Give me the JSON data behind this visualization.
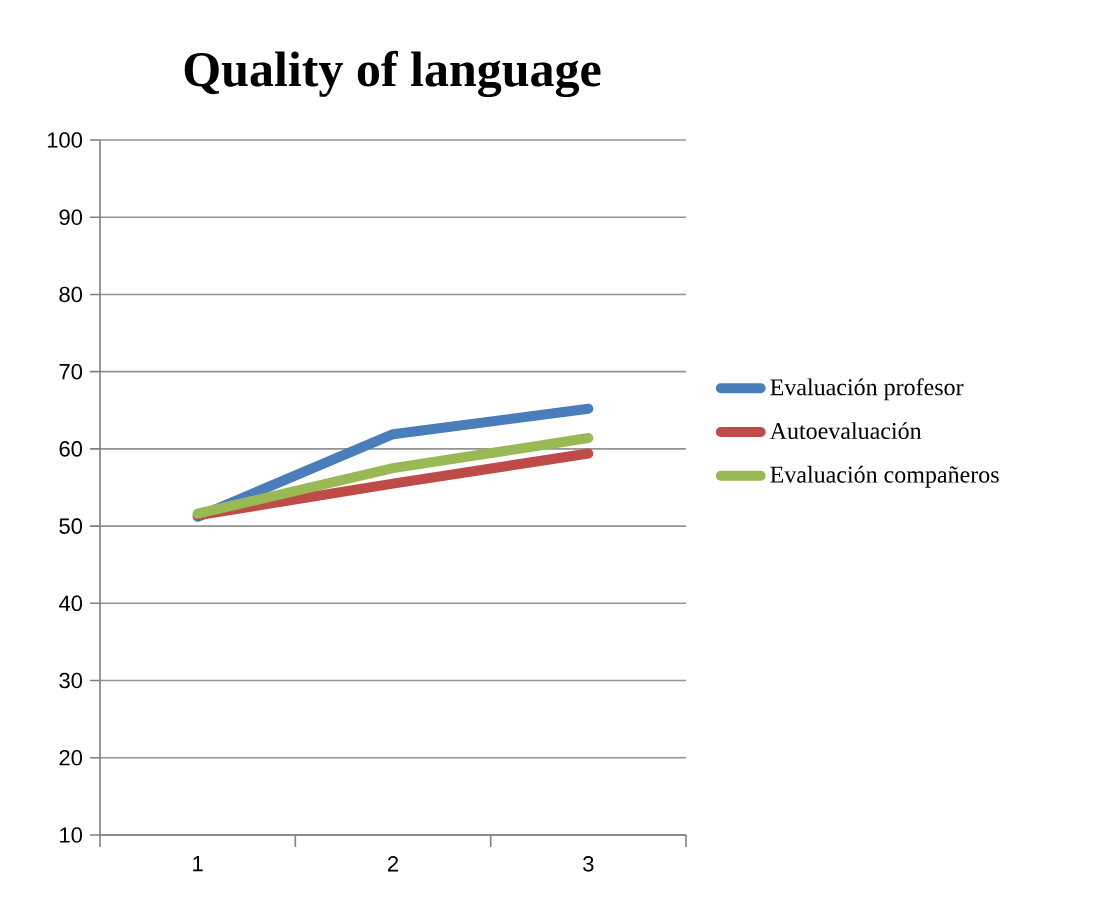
{
  "chart_data": {
    "type": "line",
    "title": "Quality of language",
    "categories": [
      "1",
      "2",
      "3"
    ],
    "series": [
      {
        "name": "Evaluación profesor",
        "color": "#4a7ebb",
        "values": [
          51.2,
          61.9,
          65.2
        ]
      },
      {
        "name": "Autoevaluación",
        "color": "#be4b48",
        "values": [
          51.4,
          55.5,
          59.4
        ]
      },
      {
        "name": "Evaluación compañeros",
        "color": "#98b954",
        "values": [
          51.6,
          57.5,
          61.4
        ]
      }
    ],
    "ylim": [
      10,
      100
    ],
    "yticks": [
      10,
      20,
      30,
      40,
      50,
      60,
      70,
      80,
      90,
      100
    ],
    "grid": "y",
    "legend": "right"
  }
}
